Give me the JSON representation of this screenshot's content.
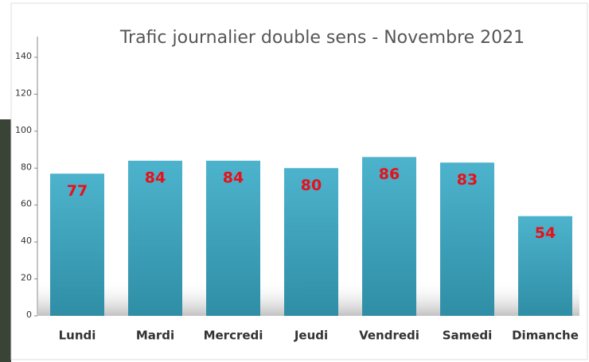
{
  "chart_data": {
    "type": "bar",
    "title": "Trafic journalier double sens - Novembre 2021",
    "categories": [
      "Lundi",
      "Mardi",
      "Mercredi",
      "Jeudi",
      "Vendredi",
      "Samedi",
      "Dimanche"
    ],
    "values": [
      77,
      84,
      84,
      80,
      86,
      83,
      54
    ],
    "color": "#44a9c2",
    "ylim": [
      0,
      140
    ],
    "yticks": [
      0,
      20,
      40,
      60,
      80,
      100,
      120,
      140
    ],
    "grid": false
  }
}
